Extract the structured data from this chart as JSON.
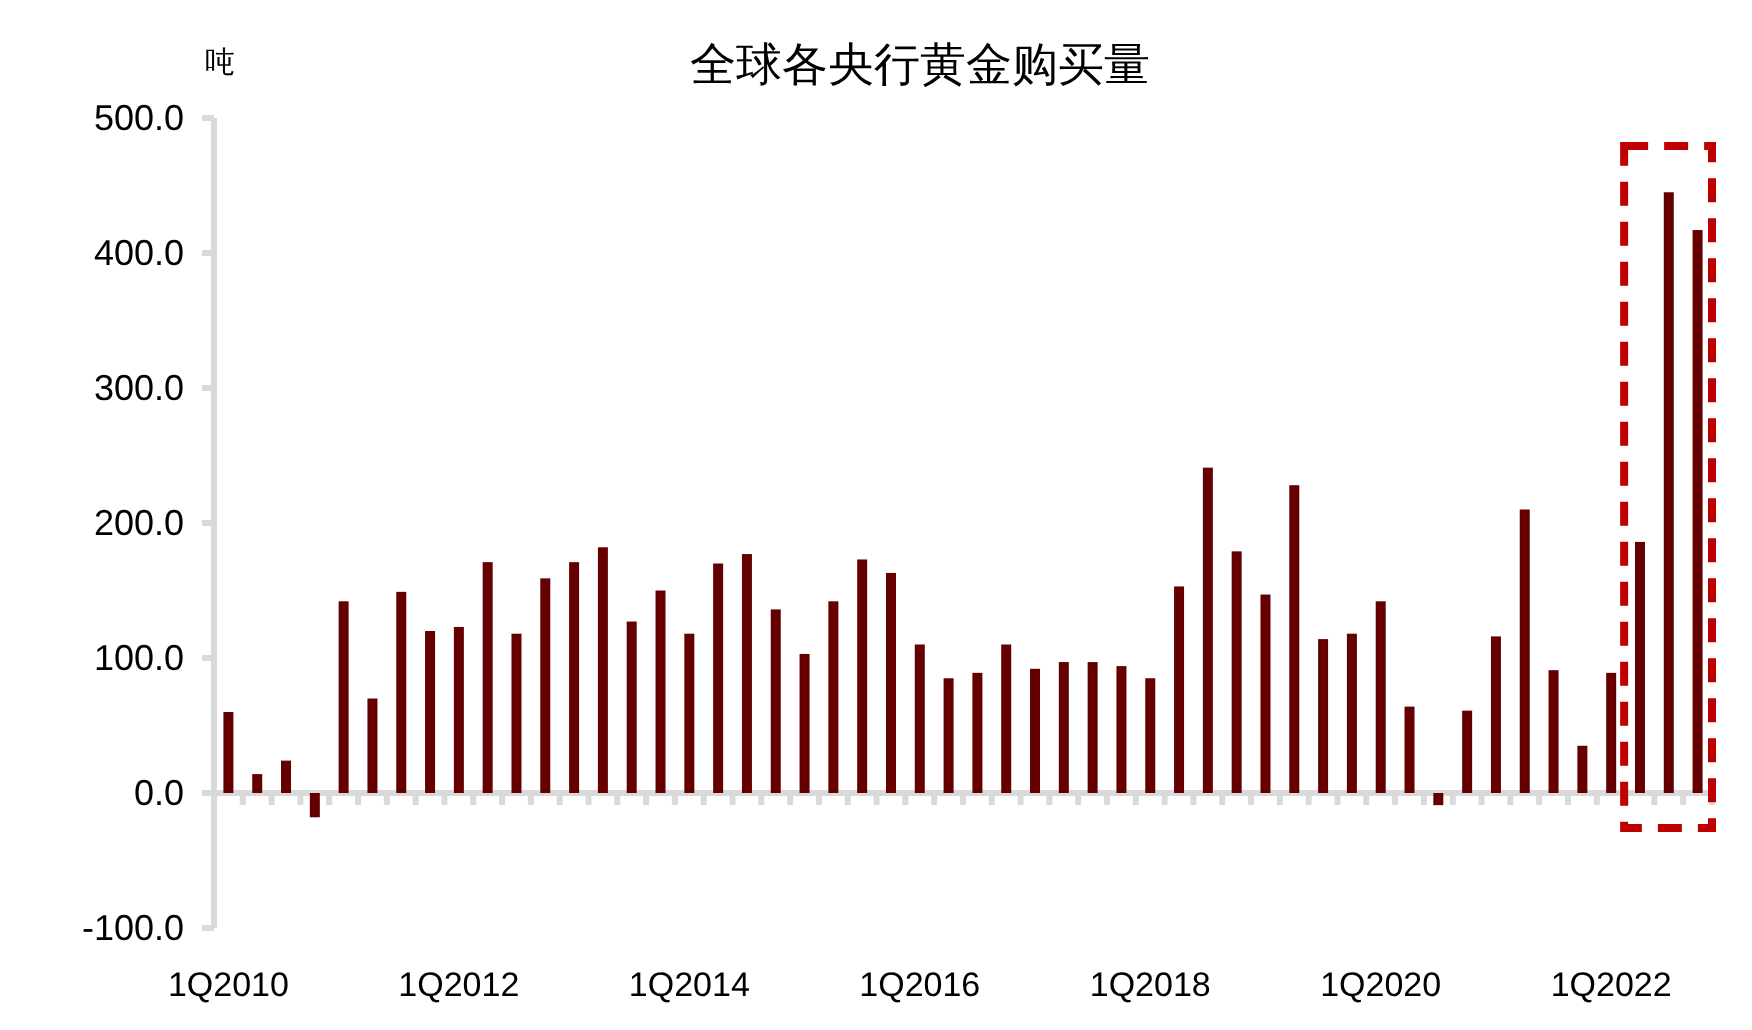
{
  "chart_data": {
    "type": "bar",
    "title": "全球各央行黄金购买量",
    "ylabel": "吨",
    "categories": [
      "1Q2010",
      null,
      null,
      null,
      null,
      null,
      null,
      null,
      "1Q2012",
      null,
      null,
      null,
      null,
      null,
      null,
      null,
      "1Q2014",
      null,
      null,
      null,
      null,
      null,
      null,
      null,
      "1Q2016",
      null,
      null,
      null,
      null,
      null,
      null,
      null,
      "1Q2018",
      null,
      null,
      null,
      null,
      null,
      null,
      null,
      "1Q2020",
      null,
      null,
      null,
      null,
      null,
      null,
      null,
      "1Q2022",
      null,
      null,
      null
    ],
    "values": [
      60,
      14,
      24,
      -18,
      142,
      70,
      149,
      120,
      123,
      171,
      118,
      159,
      171,
      182,
      127,
      150,
      118,
      170,
      177,
      136,
      103,
      142,
      173,
      163,
      110,
      85,
      89,
      110,
      92,
      97,
      97,
      94,
      85,
      153,
      241,
      179,
      147,
      228,
      114,
      118,
      142,
      64,
      -9,
      61,
      116,
      210,
      91,
      35,
      89,
      186,
      445,
      417
    ],
    "color": "#660000",
    "ylim": [
      -100,
      500
    ],
    "yticks": [
      {
        "value": -100,
        "label": "-100.0"
      },
      {
        "value": 0,
        "label": "0.0"
      },
      {
        "value": 100,
        "label": "100.0"
      },
      {
        "value": 200,
        "label": "200.0"
      },
      {
        "value": 300,
        "label": "300.0"
      },
      {
        "value": 400,
        "label": "400.0"
      },
      {
        "value": 500,
        "label": "500.0"
      }
    ]
  }
}
